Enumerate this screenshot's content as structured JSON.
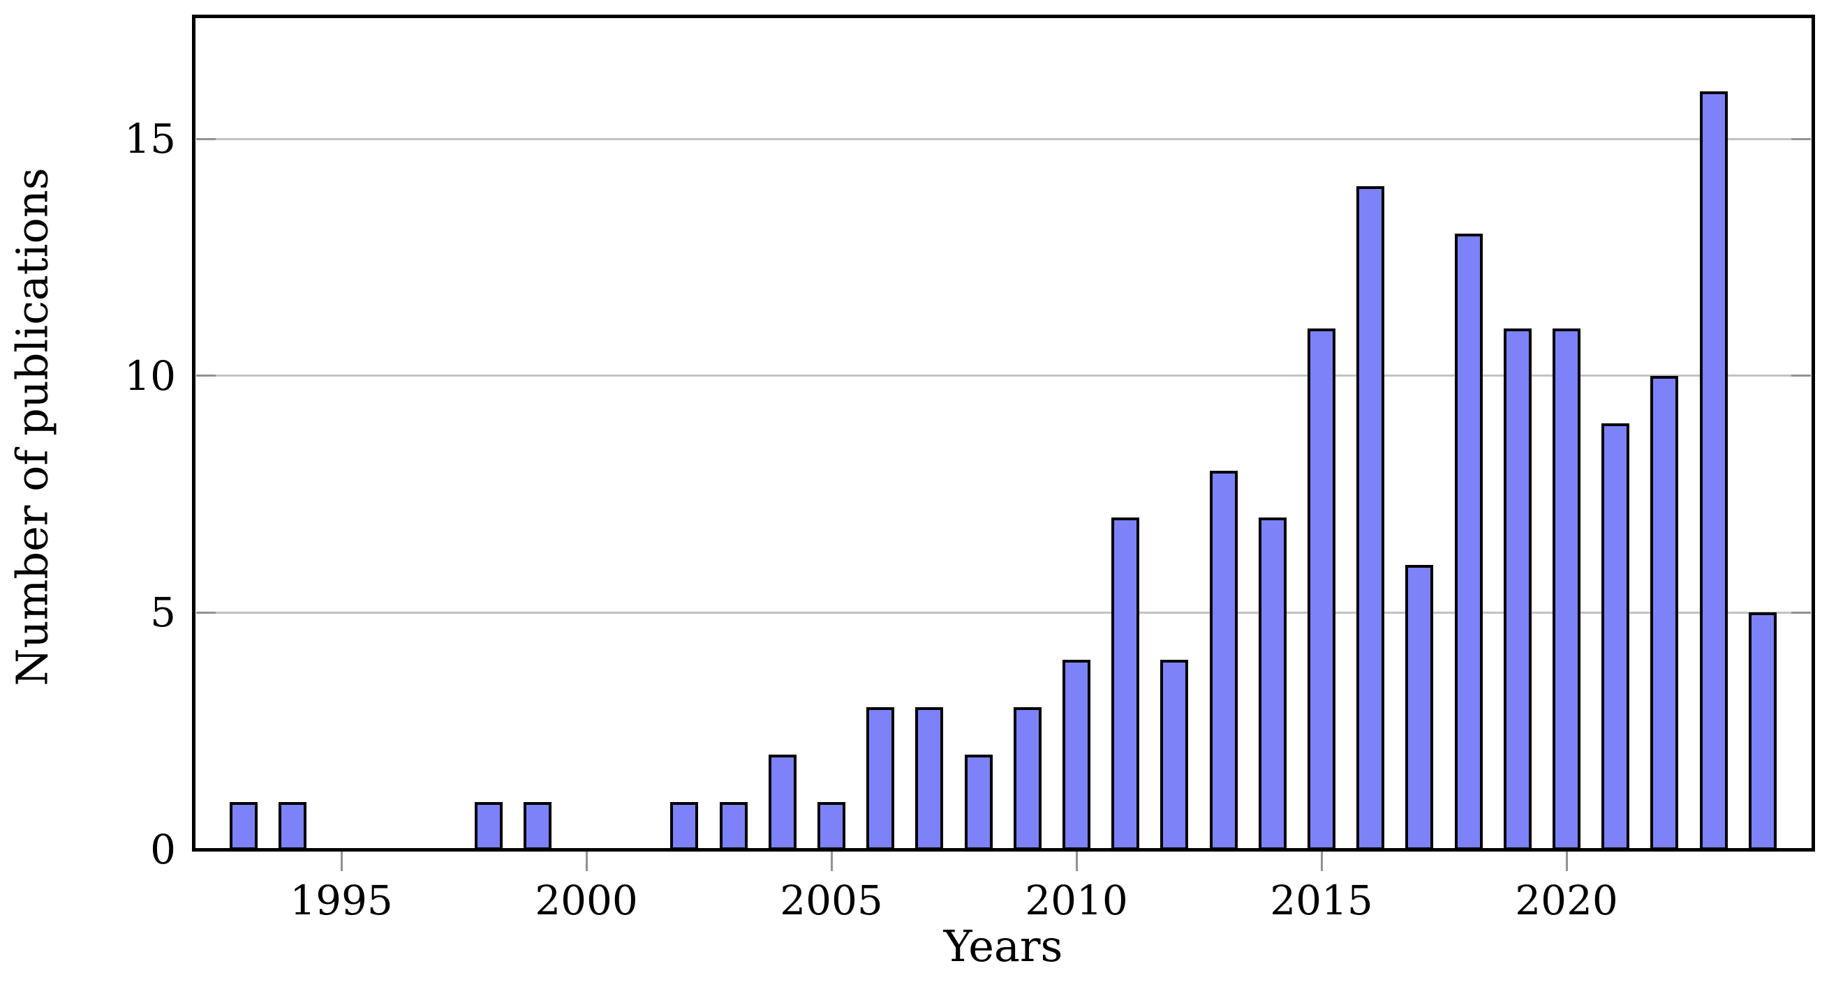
{
  "chart_data": {
    "type": "bar",
    "title": "",
    "xlabel": "Years",
    "ylabel": "Number of publications",
    "categories": [
      1993,
      1994,
      1995,
      1996,
      1997,
      1998,
      1999,
      2000,
      2001,
      2002,
      2003,
      2004,
      2005,
      2006,
      2007,
      2008,
      2009,
      2010,
      2011,
      2012,
      2013,
      2014,
      2015,
      2016,
      2017,
      2018,
      2019,
      2020,
      2021,
      2022,
      2023,
      2024
    ],
    "values": [
      1,
      1,
      0,
      0,
      0,
      1,
      1,
      0,
      0,
      1,
      1,
      2,
      1,
      3,
      3,
      2,
      3,
      4,
      7,
      4,
      8,
      7,
      11,
      14,
      6,
      13,
      11,
      11,
      9,
      10,
      16,
      5
    ],
    "xticks": [
      1995,
      2000,
      2005,
      2010,
      2015,
      2020
    ],
    "yticks": [
      0,
      5,
      10,
      15
    ],
    "xlim": [
      1992,
      2025
    ],
    "ylim": [
      0,
      17.6
    ],
    "grid": "horizontal",
    "legend": "none",
    "colors": {
      "bar_fill": "#7e82f8",
      "bar_edge": "#000000",
      "axis_frame": "#000000",
      "gridline": "#c2c2c2",
      "tick": "#919191",
      "background": "#ffffff",
      "text": "#000000"
    }
  }
}
